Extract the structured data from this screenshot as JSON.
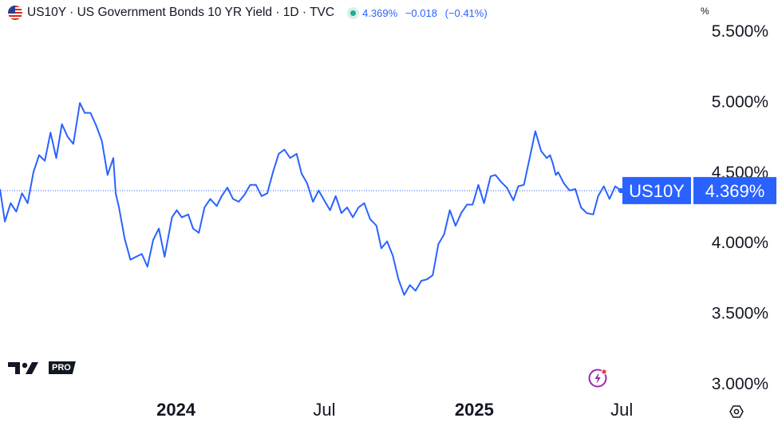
{
  "header": {
    "title": "US10Y · US Government Bonds 10 YR Yield · 1D · TVC",
    "price": "4.369%",
    "change": "−0.018",
    "change_pct": "(−0.41%)",
    "accent_color": "#2962ff",
    "status_color": "#22ab94"
  },
  "unit_box": "%",
  "logo": {
    "pro_label": "PRO"
  },
  "icons": [
    "us-flag-icon",
    "market-status-icon",
    "bolt-icon",
    "settings-icon"
  ],
  "chart_data": {
    "type": "line",
    "title": "US10Y · US Government Bonds 10 YR Yield · 1D · TVC",
    "xlabel": "",
    "ylabel": "",
    "x_tick_labels": [
      "2024",
      "Jul",
      "2025",
      "Jul"
    ],
    "x_tick_dates": [
      "2024-01-01",
      "2024-07-01",
      "2025-01-01",
      "2025-07-01"
    ],
    "ylim": [
      2.95,
      5.55
    ],
    "y_tick_labels": [
      "3.000%",
      "3.500%",
      "4.000%",
      "4.500%",
      "5.000%",
      "5.500%"
    ],
    "y_tick_values": [
      3.0,
      3.5,
      4.0,
      4.5,
      5.0,
      5.5
    ],
    "grid": false,
    "last_value": 4.369,
    "last_label": "US10Y",
    "last_value_text": "4.369%",
    "line_color": "#2962ff",
    "series": [
      {
        "x": [
          "2023-05-30",
          "2023-06-05",
          "2023-06-12",
          "2023-06-19",
          "2023-06-26",
          "2023-07-03",
          "2023-07-10",
          "2023-07-17",
          "2023-07-24",
          "2023-07-31",
          "2023-08-07",
          "2023-08-14",
          "2023-08-21",
          "2023-08-28",
          "2023-09-05",
          "2023-09-11",
          "2023-09-18",
          "2023-09-25",
          "2023-10-02",
          "2023-10-09",
          "2023-10-16",
          "2023-10-19",
          "2023-10-23",
          "2023-10-30",
          "2023-11-06",
          "2023-11-13",
          "2023-11-20",
          "2023-11-27",
          "2023-12-04",
          "2023-12-11",
          "2023-12-18",
          "2023-12-27",
          "2024-01-02",
          "2024-01-08",
          "2024-01-16",
          "2024-01-22",
          "2024-01-29",
          "2024-02-05",
          "2024-02-12",
          "2024-02-20",
          "2024-02-26",
          "2024-03-04",
          "2024-03-11",
          "2024-03-18",
          "2024-03-25",
          "2024-04-01",
          "2024-04-08",
          "2024-04-15",
          "2024-04-22",
          "2024-04-29",
          "2024-05-06",
          "2024-05-13",
          "2024-05-20",
          "2024-05-28",
          "2024-06-03",
          "2024-06-10",
          "2024-06-17",
          "2024-06-24",
          "2024-07-01",
          "2024-07-08",
          "2024-07-15",
          "2024-07-22",
          "2024-07-29",
          "2024-08-05",
          "2024-08-12",
          "2024-08-19",
          "2024-08-26",
          "2024-09-03",
          "2024-09-09",
          "2024-09-16",
          "2024-09-23",
          "2024-09-30",
          "2024-10-07",
          "2024-10-14",
          "2024-10-21",
          "2024-10-28",
          "2024-11-04",
          "2024-11-11",
          "2024-11-18",
          "2024-11-25",
          "2024-12-02",
          "2024-12-09",
          "2024-12-16",
          "2024-12-23",
          "2024-12-30",
          "2025-01-06",
          "2025-01-13",
          "2025-01-21",
          "2025-01-27",
          "2025-02-03",
          "2025-02-10",
          "2025-02-18",
          "2025-02-24",
          "2025-03-03",
          "2025-03-10",
          "2025-03-17",
          "2025-03-24",
          "2025-03-31",
          "2025-04-04",
          "2025-04-07",
          "2025-04-11",
          "2025-04-14",
          "2025-04-21",
          "2025-04-28",
          "2025-05-05",
          "2025-05-12",
          "2025-05-19",
          "2025-05-27",
          "2025-06-02",
          "2025-06-09",
          "2025-06-16",
          "2025-06-23",
          "2025-06-30"
        ],
        "y": [
          4.38,
          4.15,
          4.28,
          4.22,
          4.35,
          4.28,
          4.5,
          4.62,
          4.58,
          4.78,
          4.6,
          4.84,
          4.75,
          4.7,
          4.99,
          4.92,
          4.92,
          4.83,
          4.72,
          4.48,
          4.6,
          4.35,
          4.25,
          4.03,
          3.88,
          3.9,
          3.92,
          3.83,
          4.02,
          4.1,
          3.9,
          4.18,
          4.23,
          4.18,
          4.2,
          4.1,
          4.07,
          4.25,
          4.31,
          4.26,
          4.33,
          4.39,
          4.31,
          4.29,
          4.34,
          4.41,
          4.41,
          4.33,
          4.35,
          4.5,
          4.63,
          4.66,
          4.6,
          4.63,
          4.49,
          4.42,
          4.29,
          4.37,
          4.3,
          4.23,
          4.33,
          4.21,
          4.25,
          4.18,
          4.25,
          4.28,
          4.17,
          4.12,
          3.96,
          4.01,
          3.91,
          3.74,
          3.63,
          3.7,
          3.66,
          3.73,
          3.74,
          3.77,
          3.99,
          4.06,
          4.23,
          4.12,
          4.21,
          4.27,
          4.27,
          4.41,
          4.28,
          4.47,
          4.48,
          4.43,
          4.39,
          4.3,
          4.4,
          4.41,
          4.6,
          4.79,
          4.65,
          4.6,
          4.62,
          4.57,
          4.48,
          4.5,
          4.42,
          4.37,
          4.38,
          4.25,
          4.21,
          4.2,
          4.33,
          4.4,
          4.31,
          4.4,
          4.369
        ]
      }
    ]
  }
}
